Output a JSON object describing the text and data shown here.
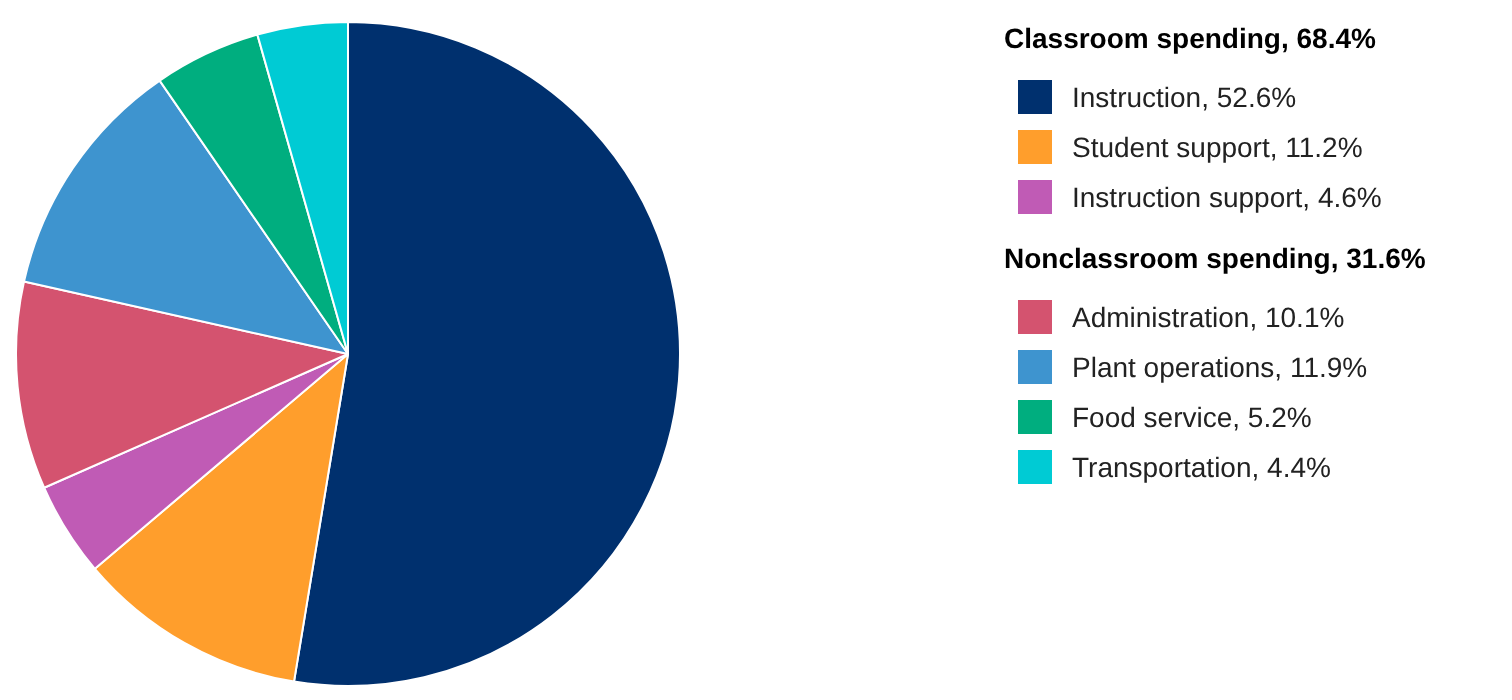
{
  "chart_data": {
    "type": "pie",
    "categories": [
      "Instruction, 52.6%",
      "Student support, 11.2%",
      "Instruction support, 4.6%",
      "Administration, 10.1%",
      "Plant operations, 11.9%",
      "Food service, 5.2%",
      "Transportation, 4.4%"
    ],
    "values": [
      52.6,
      11.2,
      4.6,
      10.1,
      11.9,
      5.2,
      4.4
    ],
    "colors": [
      "#00306e",
      "#ff9e2c",
      "#c05bb5",
      "#d4536f",
      "#3e94cf",
      "#00ae7f",
      "#00cbd4"
    ],
    "annotations": [
      "Classroom spending, 68.4%",
      "Nonclassroom spending, 31.6%"
    ],
    "legend": "right"
  }
}
